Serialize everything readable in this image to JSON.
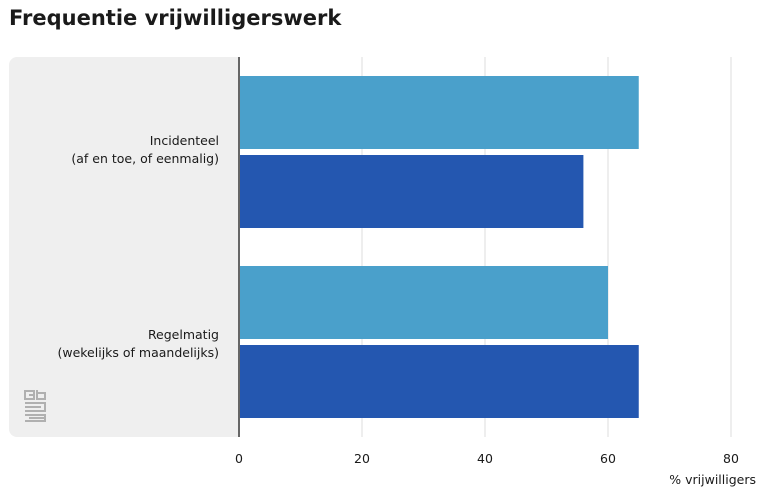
{
  "title": "Frequentie vrijwilligerswerk",
  "chart_data": {
    "type": "bar",
    "orientation": "horizontal",
    "categories": [
      [
        "Incidenteel",
        "(af en toe, of eenmalig)"
      ],
      [
        "Regelmatig",
        "(wekelijks of maandelijks)"
      ]
    ],
    "series": [
      {
        "values": [
          65,
          60
        ],
        "color": "#4aa0cb"
      },
      {
        "values": [
          56,
          65
        ],
        "color": "#2457b0"
      }
    ],
    "xlabel": "% vrijwilligers",
    "xlim": [
      0,
      80
    ],
    "xticks": [
      0,
      20,
      40,
      60,
      80
    ],
    "grid": true
  },
  "logo": {
    "icon": "cbs-logo-icon",
    "color": "#b0b0b0"
  }
}
